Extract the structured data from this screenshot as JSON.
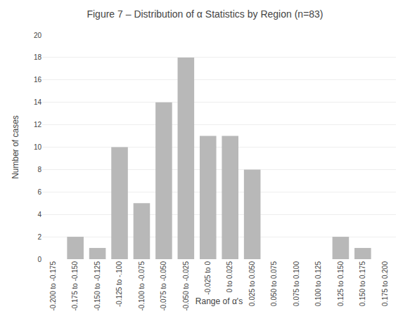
{
  "chart_data": {
    "type": "bar",
    "title": "Figure 7 – Distribution of α Statistics by Region (n=83)",
    "x_label": "Range of α's",
    "y_label": "Number of cases",
    "categories": [
      "-0.200 to -0.175",
      "-0.175 to -0.150",
      "-0.150 to -0.125",
      "-0.125 to -.100",
      "-0.100 to -0.075",
      "-0.075 to -0.050",
      "-0.050 to -0.025",
      "-0.025 to 0",
      "0 to 0.025",
      "0.025 to 0.050",
      "0.050 to 0.075",
      "0.075 to 0.100",
      "0.100 to 0.125",
      "0.125 to 0.150",
      "0.150 to 0.175",
      "0.175 to 0.200"
    ],
    "values": [
      0,
      2,
      1,
      10,
      5,
      14,
      18,
      11,
      11,
      8,
      0,
      0,
      0,
      2,
      1,
      0
    ],
    "color": "#b8b8b8",
    "ylim": [
      0,
      20
    ],
    "yticks": [
      0,
      2,
      4,
      6,
      8,
      10,
      12,
      14,
      16,
      18,
      20
    ],
    "grid": true
  }
}
